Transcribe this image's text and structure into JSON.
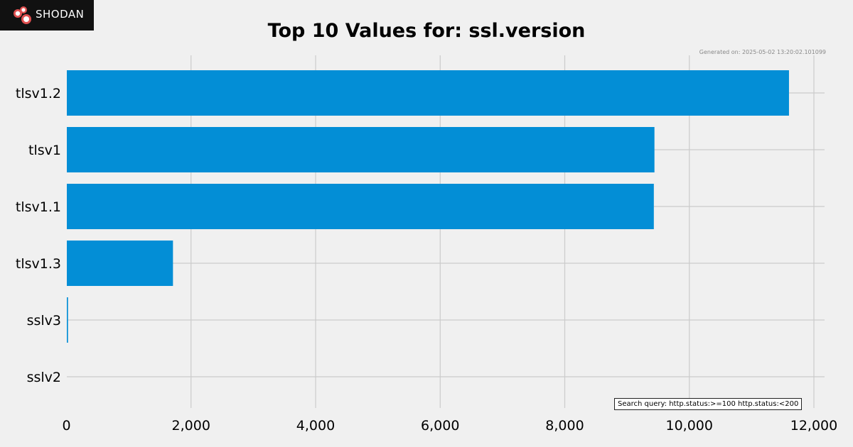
{
  "logo": {
    "text": "SHODAN"
  },
  "generated": "Generated on: 2025-05-02 13:20:02.101099",
  "query": "Search query: http.status:>=100 http.status:<200",
  "colors": {
    "bar": "#038ed6",
    "grid": "#cbcbcb",
    "background": "#f0f0f0"
  },
  "chart_data": {
    "type": "bar",
    "orientation": "horizontal",
    "title": "Top 10 Values for: ssl.version",
    "categories": [
      "tlsv1.2",
      "tlsv1",
      "tlsv1.1",
      "tlsv1.3",
      "sslv3",
      "sslv2"
    ],
    "values": [
      11600,
      9440,
      9430,
      1710,
      25,
      0
    ],
    "xlim": [
      0,
      12000
    ],
    "xticks": [
      "0",
      "2,000",
      "4,000",
      "6,000",
      "8,000",
      "10,000",
      "12,000"
    ],
    "grid": true,
    "xlabel": "",
    "ylabel": ""
  }
}
